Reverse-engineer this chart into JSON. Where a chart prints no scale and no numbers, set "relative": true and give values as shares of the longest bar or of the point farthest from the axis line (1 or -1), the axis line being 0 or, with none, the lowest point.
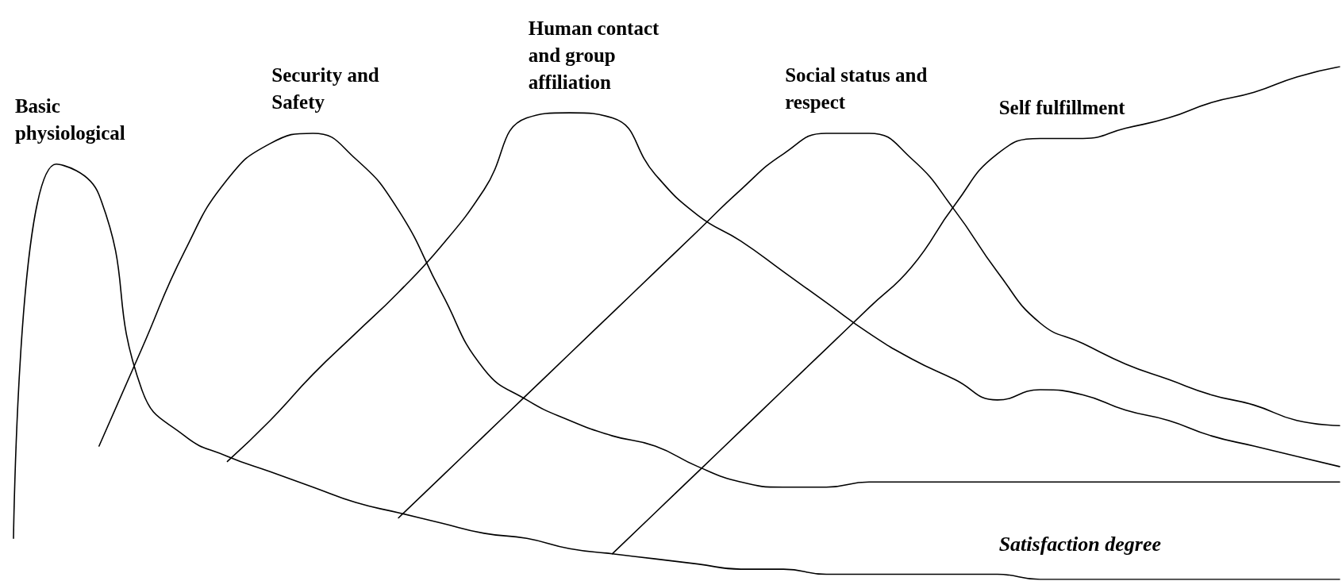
{
  "chart_data": {
    "type": "line",
    "relative": true,
    "xlabel": "Satisfaction degree",
    "legend": false,
    "grid": false,
    "marker": "none",
    "line_style": "solid",
    "tick_labels": false,
    "categories": [
      null,
      null,
      null,
      null,
      null,
      null,
      null,
      null,
      null,
      null,
      null,
      null,
      null,
      null,
      null,
      null,
      null,
      null,
      null,
      null,
      null,
      null,
      null,
      null,
      null,
      null,
      null,
      null,
      null,
      null,
      null,
      null
    ],
    "series": [
      {
        "name": "Basic physiological",
        "color": "#000000",
        "values": [
          0.08,
          0.81,
          0.75,
          0.37,
          0.28,
          0.24,
          0.21,
          0.18,
          0.15,
          0.13,
          0.11,
          0.09,
          0.08,
          0.06,
          0.05,
          0.04,
          0.03,
          0.02,
          0.02,
          0.01,
          0.01,
          0.01,
          0.01,
          0.01,
          0,
          0,
          0,
          0,
          0,
          0,
          0,
          0
        ]
      },
      {
        "name": "Security and Safety",
        "color": "#000000",
        "values": [
          null,
          null,
          0.26,
          0.45,
          0.64,
          0.78,
          0.85,
          0.87,
          0.82,
          0.72,
          0.56,
          0.41,
          0.35,
          0.31,
          0.28,
          0.26,
          0.22,
          0.19,
          0.18,
          0.18,
          0.19,
          0.19,
          0.19,
          0.19,
          0.19,
          0.19,
          0.19,
          0.19,
          0.19,
          0.19,
          0.19,
          0.19
        ]
      },
      {
        "name": "Human contact and group affiliation",
        "color": "#000000",
        "values": [
          null,
          null,
          null,
          null,
          null,
          0.23,
          0.31,
          0.4,
          0.48,
          0.56,
          0.65,
          0.76,
          0.9,
          0.91,
          0.9,
          0.79,
          0.71,
          0.66,
          0.6,
          0.54,
          0.48,
          0.43,
          0.39,
          0.35,
          0.37,
          0.36,
          0.33,
          0.31,
          0.28,
          0.26,
          0.24,
          0.22
        ]
      },
      {
        "name": "Social status and respect",
        "color": "#000000",
        "values": [
          null,
          null,
          null,
          null,
          null,
          null,
          null,
          null,
          null,
          0.12,
          0.2,
          0.28,
          0.36,
          0.44,
          0.52,
          0.6,
          0.68,
          0.76,
          0.83,
          0.87,
          0.87,
          0.82,
          0.72,
          0.6,
          0.5,
          0.46,
          0.42,
          0.39,
          0.36,
          0.34,
          0.31,
          0.3
        ]
      },
      {
        "name": "Self fulfillment",
        "color": "#000000",
        "values": [
          null,
          null,
          null,
          null,
          null,
          null,
          null,
          null,
          null,
          null,
          null,
          null,
          null,
          null,
          0.05,
          0.13,
          0.21,
          0.29,
          0.37,
          0.45,
          0.53,
          0.61,
          0.73,
          0.83,
          0.86,
          0.86,
          0.88,
          0.9,
          0.93,
          0.95,
          0.98,
          1
        ]
      }
    ]
  }
}
